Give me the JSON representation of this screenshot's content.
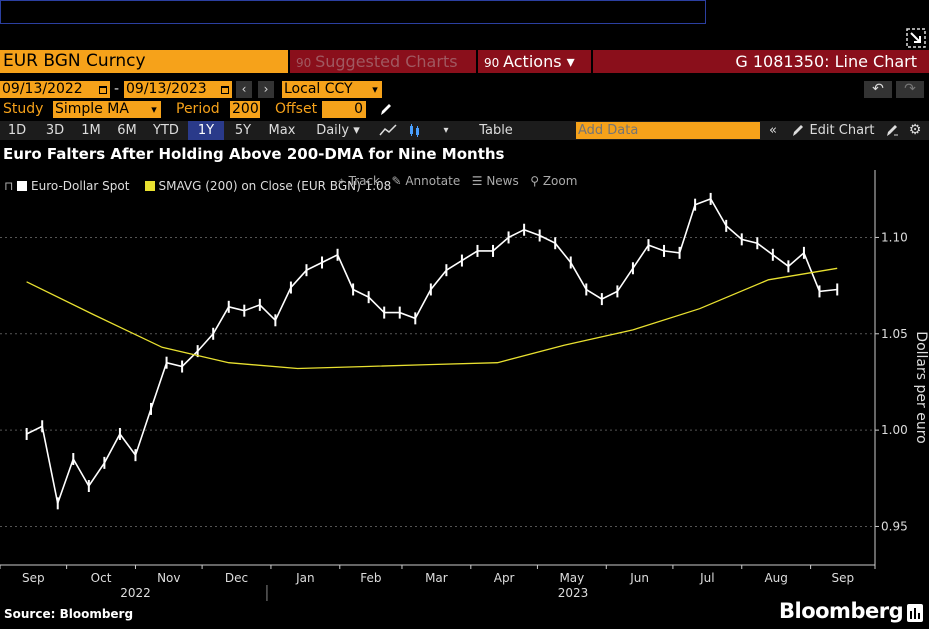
{
  "header": {
    "ticker": "EUR BGN Curncy",
    "suggested": "Suggested Charts",
    "actions": "Actions",
    "window_title": "G 1081350: Line Chart"
  },
  "controls": {
    "start_date": "09/13/2022",
    "date_sep": "-",
    "end_date": "09/13/2023",
    "currency": "Local CCY",
    "study_label": "Study",
    "study_value": "Simple MA",
    "period_label": "Period",
    "period_value": "200",
    "offset_label": "Offset",
    "offset_value": "0"
  },
  "toolbar": {
    "ranges": [
      "1D",
      "3D",
      "1M",
      "6M",
      "YTD",
      "1Y",
      "5Y",
      "Max"
    ],
    "selected_range": "1Y",
    "frequency": "Daily",
    "table": "Table",
    "add_data_placeholder": "Add Data",
    "edit_chart": "Edit Chart"
  },
  "chart_tools": {
    "track": "Track",
    "annotate": "Annotate",
    "news": "News",
    "zoom": "Zoom"
  },
  "footer": {
    "source": "Source: Bloomberg",
    "brand": "Bloomberg"
  },
  "colors": {
    "orange": "#f6a21a",
    "darkred": "#8a0f1b",
    "series_spot": "#ffffff",
    "series_ma": "#e8e030"
  },
  "chart_data": {
    "type": "line",
    "title": "Euro Falters After Holding Above 200-DMA for Nine Months",
    "ylabel": "Dollars per euro",
    "ylim": [
      0.93,
      1.135
    ],
    "yticks": [
      0.95,
      1.0,
      1.05,
      1.1
    ],
    "ytick_labels": [
      "0.95",
      "1.00",
      "1.05",
      "1.10"
    ],
    "x_months": [
      "Sep",
      "Oct",
      "Nov",
      "Dec",
      "Jan",
      "Feb",
      "Mar",
      "Apr",
      "May",
      "Jun",
      "Jul",
      "Aug",
      "Sep"
    ],
    "x_years": [
      "2022",
      "2023"
    ],
    "legend_position": "top-left",
    "legend": [
      "Euro-Dollar Spot",
      "SMAVG (200)  on Close (EUR BGN) 1.08"
    ],
    "series": [
      {
        "name": "Euro-Dollar Spot",
        "x": [
          "2022-09-13",
          "2022-09-20",
          "2022-09-27",
          "2022-10-04",
          "2022-10-11",
          "2022-10-18",
          "2022-10-25",
          "2022-11-01",
          "2022-11-08",
          "2022-11-15",
          "2022-11-22",
          "2022-11-29",
          "2022-12-06",
          "2022-12-13",
          "2022-12-20",
          "2022-12-27",
          "2023-01-03",
          "2023-01-10",
          "2023-01-17",
          "2023-01-24",
          "2023-01-31",
          "2023-02-07",
          "2023-02-14",
          "2023-02-21",
          "2023-02-28",
          "2023-03-07",
          "2023-03-14",
          "2023-03-21",
          "2023-03-28",
          "2023-04-04",
          "2023-04-11",
          "2023-04-18",
          "2023-04-25",
          "2023-05-02",
          "2023-05-09",
          "2023-05-16",
          "2023-05-23",
          "2023-05-30",
          "2023-06-06",
          "2023-06-13",
          "2023-06-20",
          "2023-06-27",
          "2023-07-04",
          "2023-07-11",
          "2023-07-18",
          "2023-07-25",
          "2023-08-01",
          "2023-08-08",
          "2023-08-15",
          "2023-08-22",
          "2023-08-29",
          "2023-09-05",
          "2023-09-13"
        ],
        "values": [
          0.998,
          1.002,
          0.962,
          0.985,
          0.971,
          0.983,
          0.998,
          0.987,
          1.011,
          1.035,
          1.033,
          1.041,
          1.05,
          1.064,
          1.062,
          1.065,
          1.057,
          1.074,
          1.083,
          1.087,
          1.091,
          1.073,
          1.069,
          1.061,
          1.061,
          1.058,
          1.073,
          1.083,
          1.088,
          1.093,
          1.093,
          1.1,
          1.104,
          1.101,
          1.097,
          1.087,
          1.073,
          1.068,
          1.072,
          1.084,
          1.096,
          1.093,
          1.092,
          1.117,
          1.12,
          1.106,
          1.099,
          1.097,
          1.091,
          1.085,
          1.092,
          1.072,
          1.073
        ]
      },
      {
        "name": "SMAVG (200)",
        "x": [
          "2022-09-13",
          "2022-10-13",
          "2022-11-13",
          "2022-12-13",
          "2023-01-13",
          "2023-02-13",
          "2023-03-13",
          "2023-04-13",
          "2023-05-13",
          "2023-06-13",
          "2023-07-13",
          "2023-08-13",
          "2023-09-13"
        ],
        "values": [
          1.077,
          1.06,
          1.043,
          1.035,
          1.032,
          1.033,
          1.034,
          1.035,
          1.044,
          1.052,
          1.063,
          1.078,
          1.084
        ]
      }
    ]
  }
}
